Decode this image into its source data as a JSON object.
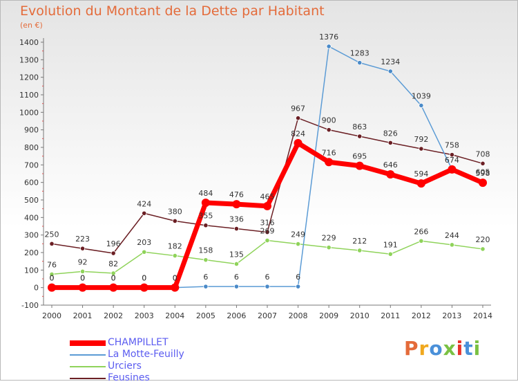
{
  "header": {
    "title": "Evolution du Montant de la Dette par Habitant",
    "unit": "(en €)"
  },
  "logo": {
    "text": "Proxiti",
    "colors": [
      "#e46b3a",
      "#f0a81e",
      "#4a90d9",
      "#7ac143",
      "#e8322b",
      "#4a90d9",
      "#7ac143"
    ]
  },
  "chart_data": {
    "type": "line",
    "title": "Evolution du Montant de la Dette par Habitant",
    "ylabel": "(en €)",
    "xlabel": "",
    "ylim": [
      -100,
      1400
    ],
    "yticks": [
      -100,
      0,
      100,
      200,
      300,
      400,
      500,
      600,
      700,
      800,
      900,
      1000,
      1100,
      1200,
      1300,
      1400
    ],
    "grid": false,
    "legend_position": "bottom-left",
    "x": [
      "2000",
      "2001",
      "2002",
      "2003",
      "2004",
      "2005",
      "2006",
      "2007",
      "2008",
      "2009",
      "2010",
      "2011",
      "2012",
      "2013",
      "2014"
    ],
    "series": [
      {
        "name": "Feusines",
        "color": "#6b1f24",
        "values": [
          250,
          223,
          196,
          424,
          380,
          355,
          336,
          316,
          967,
          900,
          863,
          826,
          792,
          758,
          708
        ]
      },
      {
        "name": "Urciers",
        "color": "#8fd35a",
        "values": [
          76,
          92,
          82,
          203,
          182,
          158,
          135,
          269,
          249,
          229,
          212,
          191,
          266,
          244,
          220
        ]
      },
      {
        "name": "La Motte-Feuilly",
        "color": "#5b9bd5",
        "values": [
          0,
          0,
          0,
          0,
          0,
          6,
          6,
          6,
          6,
          1376,
          1283,
          1234,
          1039,
          674,
          605
        ]
      },
      {
        "name": "CHAMPILLET",
        "color": "#ff0000",
        "values": [
          0,
          0,
          0,
          0,
          0,
          484,
          476,
          465,
          824,
          716,
          695,
          646,
          594,
          674,
          598
        ]
      }
    ],
    "labels": {
      "Feusines": [
        "250",
        "223",
        "196",
        "424",
        "380",
        "355",
        "336",
        "316",
        "967",
        "900",
        "863",
        "826",
        "792",
        "758",
        "708"
      ],
      "Urciers": [
        "76",
        "92",
        "82",
        "203",
        "182",
        "158",
        "135",
        "269",
        "249",
        "229",
        "212",
        "191",
        "266",
        "244",
        "220"
      ],
      "La Motte-Feuilly": [
        "0",
        "0",
        "0",
        "0",
        "0",
        "6",
        "6",
        "6",
        "6",
        "1376",
        "1283",
        "1234",
        "1039",
        "",
        "605"
      ],
      "CHAMPILLET": [
        "0",
        "0",
        "0",
        "0",
        "0",
        "484",
        "476",
        "465",
        "824",
        "716",
        "695",
        "646",
        "594",
        "674",
        "598"
      ]
    }
  }
}
